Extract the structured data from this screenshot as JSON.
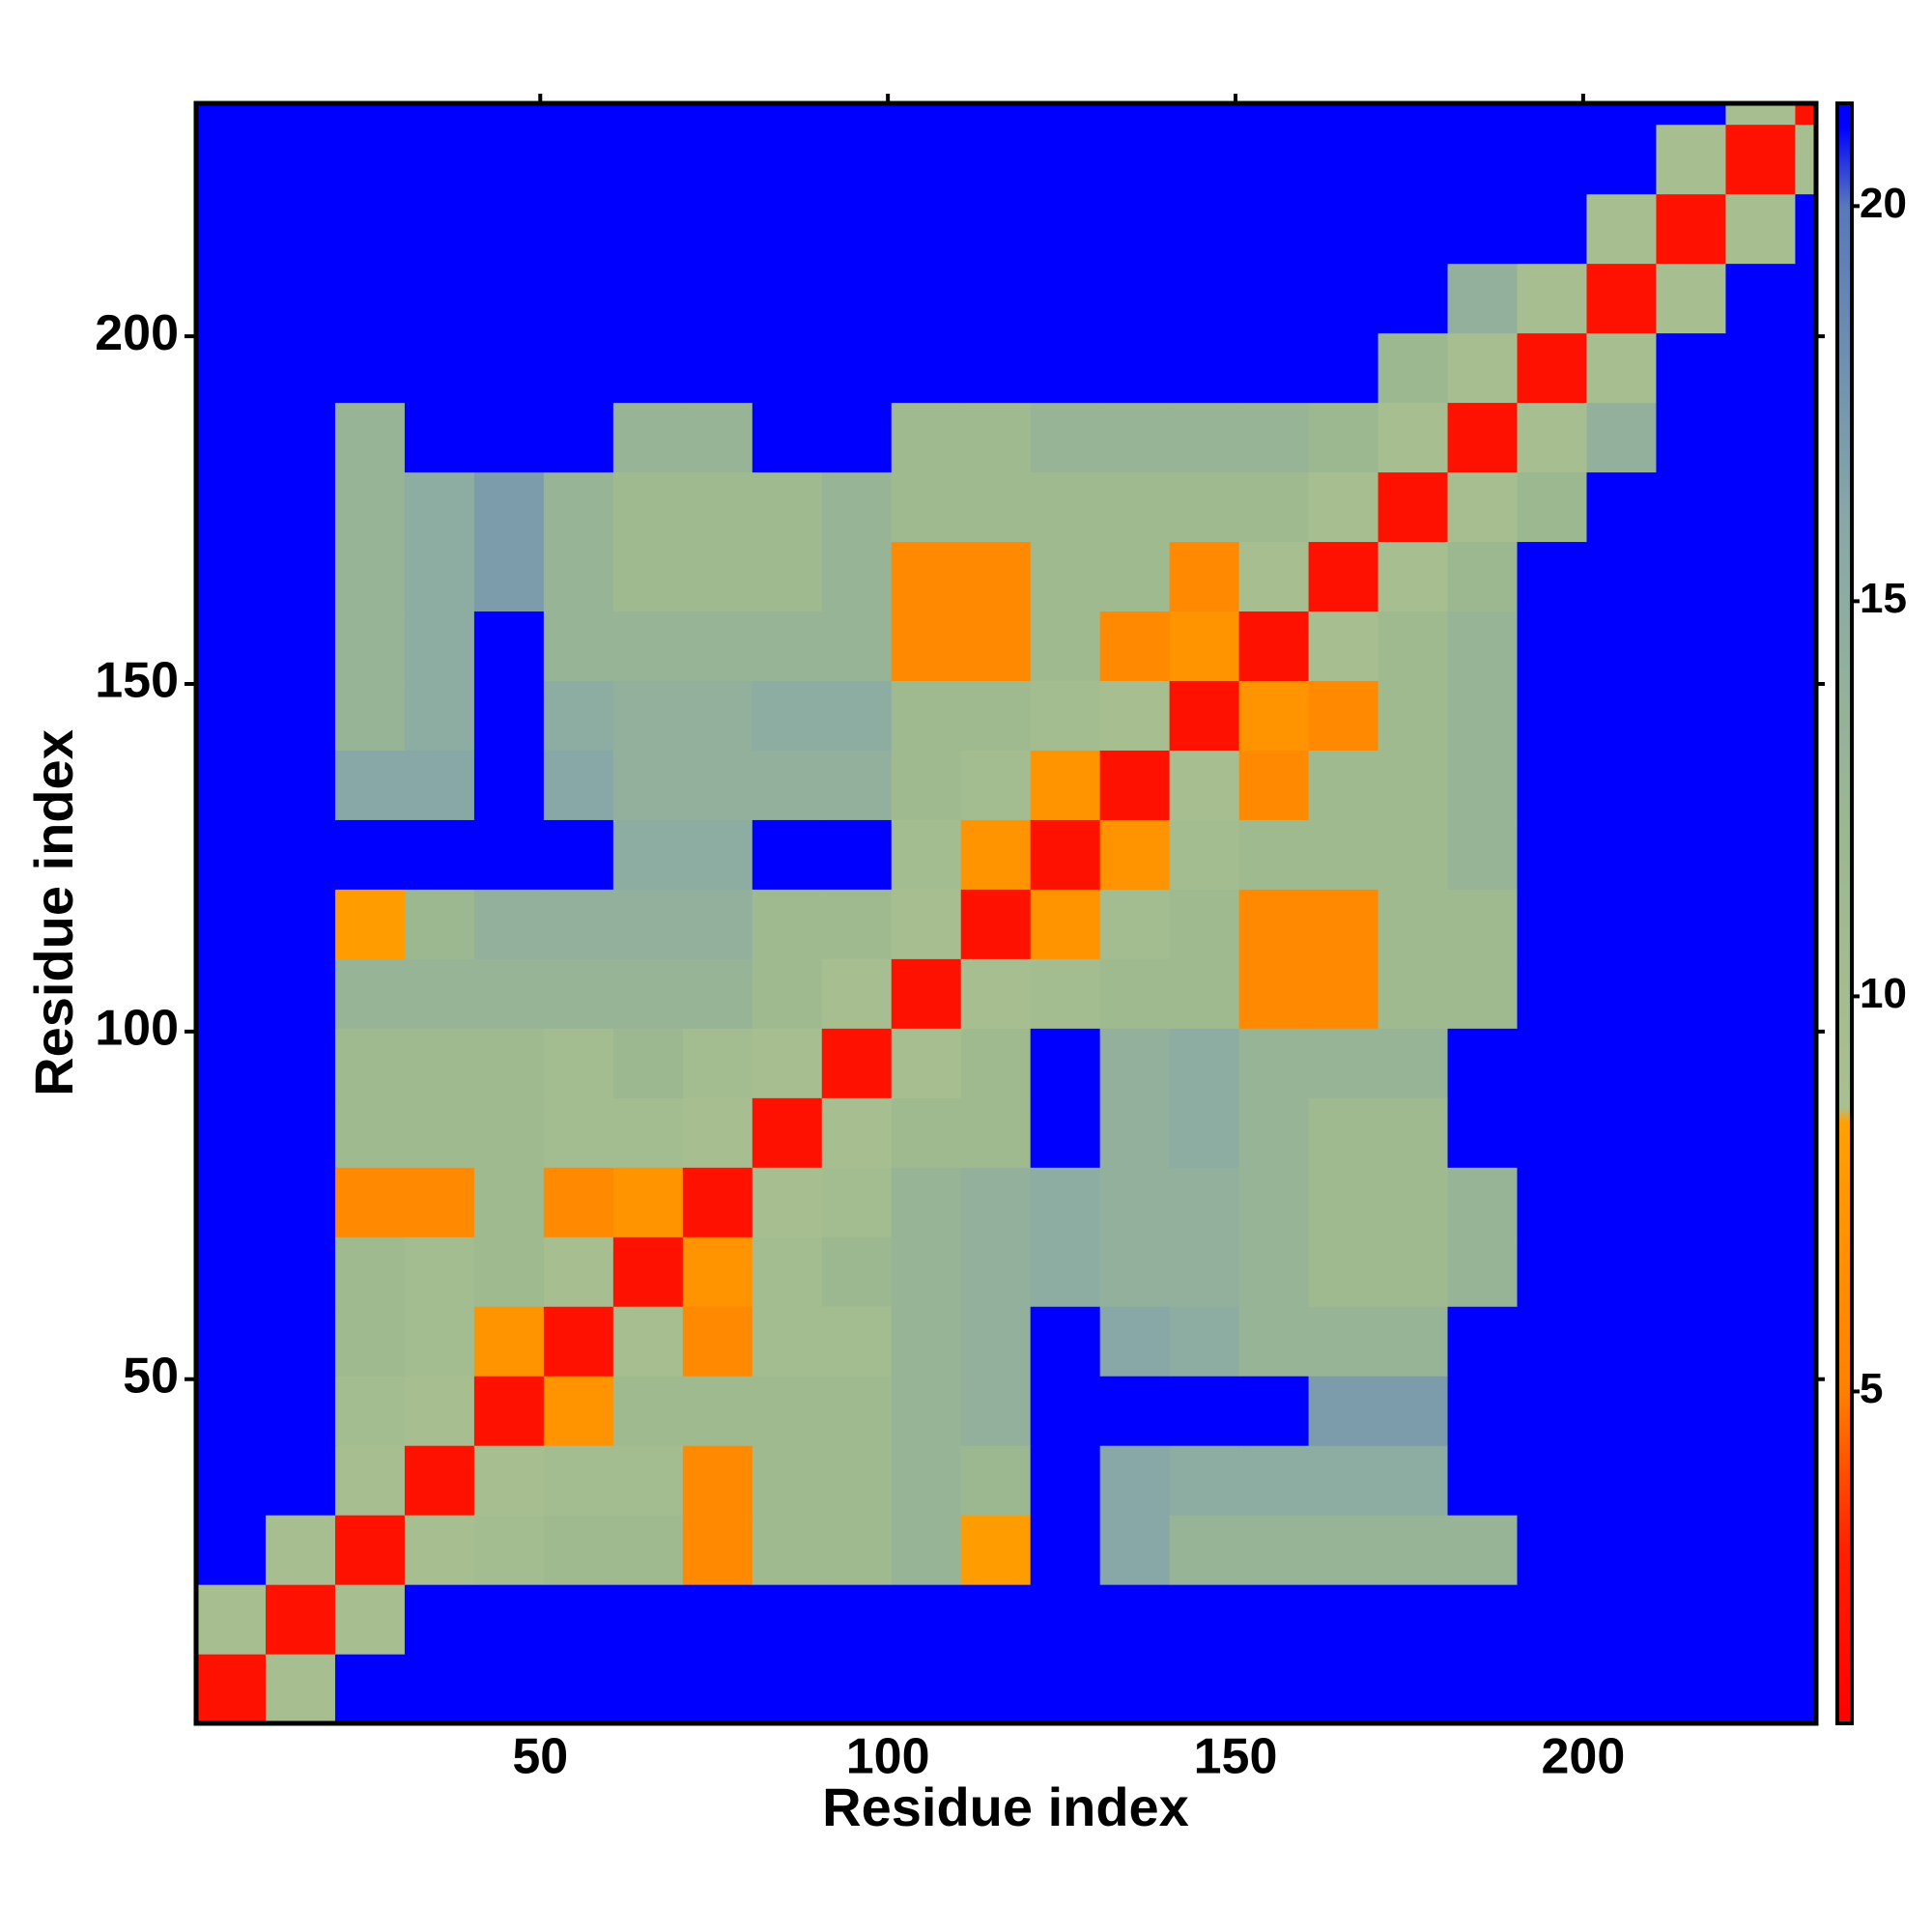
{
  "chart_data": {
    "type": "heatmap",
    "xlabel": "Residue index",
    "ylabel": "Residue index",
    "bins": [
      0.5,
      10.5,
      20.5,
      30.5,
      40.5,
      50.5,
      60.5,
      70.5,
      80.5,
      90.5,
      100.5,
      110.5,
      120.5,
      130.5,
      140.5,
      150.5,
      160.5,
      170.5,
      180.5,
      190.5,
      200.5,
      210.5,
      220.5,
      230.5,
      233.5
    ],
    "xlim": [
      0.5,
      233.5
    ],
    "ylim": [
      0.5,
      233.5
    ],
    "xticks": [
      50,
      100,
      150,
      200
    ],
    "yticks": [
      50,
      100,
      150,
      200
    ],
    "clim": [
      0.8,
      21.3
    ],
    "cticks": [
      5,
      10,
      15,
      20
    ],
    "colorscale": [
      {
        "value": 0.8,
        "color": "#ff0000"
      },
      {
        "value": 3,
        "color": "#ff2000"
      },
      {
        "value": 5,
        "color": "#ff8000"
      },
      {
        "value": 8.4,
        "color": "#ffa000"
      },
      {
        "value": 8.6,
        "color": "#a8c090"
      },
      {
        "value": 12,
        "color": "#9cb890"
      },
      {
        "value": 16,
        "color": "#88a8a8"
      },
      {
        "value": 20,
        "color": "#5878b8"
      },
      {
        "value": 21,
        "color": "#0000ff"
      },
      {
        "value": 21.3,
        "color": "#0000ff"
      }
    ],
    "values": [
      [
        2,
        9,
        21,
        21,
        21,
        21,
        21,
        21,
        21,
        21,
        21,
        21,
        21,
        21,
        21,
        21,
        21,
        21,
        21,
        21,
        21,
        21,
        21,
        21
      ],
      [
        9,
        2,
        9,
        21,
        21,
        21,
        21,
        21,
        21,
        21,
        21,
        21,
        21,
        21,
        21,
        21,
        21,
        21,
        21,
        21,
        21,
        21,
        21,
        21
      ],
      [
        21,
        9,
        2,
        9,
        10,
        11,
        11,
        6,
        11,
        11,
        13,
        8,
        21,
        16,
        13,
        13,
        13,
        13,
        13,
        21,
        21,
        21,
        21,
        21
      ],
      [
        21,
        21,
        9,
        2,
        9,
        10,
        10,
        6,
        11,
        11,
        13,
        12,
        21,
        16,
        15,
        15,
        15,
        15,
        21,
        21,
        21,
        21,
        21,
        21
      ],
      [
        21,
        21,
        10,
        9,
        2,
        7,
        11,
        11,
        11,
        11,
        13,
        14,
        21,
        21,
        21,
        21,
        17,
        17,
        21,
        21,
        21,
        21,
        21,
        21
      ],
      [
        21,
        21,
        11,
        10,
        7,
        2,
        9,
        6,
        10,
        10,
        13,
        14,
        21,
        16,
        15,
        13,
        13,
        13,
        21,
        21,
        21,
        21,
        21,
        21
      ],
      [
        21,
        21,
        11,
        10,
        11,
        9,
        2,
        7,
        10,
        12,
        13,
        14,
        15,
        14,
        14,
        13,
        11,
        11,
        13,
        21,
        21,
        21,
        21,
        21
      ],
      [
        21,
        21,
        6,
        6,
        11,
        6,
        7,
        2,
        9,
        10,
        13,
        14,
        15,
        14,
        14,
        13,
        11,
        11,
        13,
        21,
        21,
        21,
        21,
        21
      ],
      [
        21,
        21,
        11,
        11,
        11,
        10,
        10,
        9,
        2,
        9,
        11,
        11,
        21,
        14,
        15,
        13,
        11,
        11,
        21,
        21,
        21,
        21,
        21,
        21
      ],
      [
        21,
        21,
        11,
        11,
        11,
        10,
        12,
        10,
        9,
        2,
        9,
        11,
        21,
        14,
        15,
        13,
        13,
        13,
        21,
        21,
        21,
        21,
        21,
        21
      ],
      [
        21,
        21,
        13,
        13,
        13,
        13,
        13,
        13,
        11,
        9,
        2,
        9,
        10,
        11,
        11,
        6,
        6,
        11,
        11,
        21,
        21,
        21,
        21,
        21
      ],
      [
        21,
        21,
        8,
        12,
        14,
        14,
        14,
        14,
        11,
        11,
        9,
        2,
        7,
        10,
        11,
        6,
        6,
        11,
        11,
        21,
        21,
        21,
        21,
        21
      ],
      [
        21,
        21,
        21,
        21,
        21,
        21,
        15,
        15,
        21,
        21,
        10,
        7,
        2,
        7,
        10,
        11,
        11,
        11,
        13,
        21,
        21,
        21,
        21,
        21
      ],
      [
        21,
        21,
        16,
        16,
        21,
        16,
        14,
        14,
        14,
        14,
        11,
        10,
        7,
        2,
        9,
        6,
        11,
        11,
        13,
        21,
        21,
        21,
        21,
        21
      ],
      [
        21,
        21,
        13,
        15,
        21,
        15,
        14,
        14,
        15,
        15,
        11,
        11,
        10,
        9,
        2,
        7,
        6,
        11,
        13,
        21,
        21,
        21,
        21,
        21
      ],
      [
        21,
        21,
        13,
        15,
        21,
        13,
        13,
        13,
        13,
        13,
        6,
        6,
        11,
        6,
        7,
        2,
        9,
        11,
        13,
        21,
        21,
        21,
        21,
        21
      ],
      [
        21,
        21,
        13,
        15,
        17,
        13,
        11,
        11,
        11,
        13,
        6,
        6,
        11,
        11,
        6,
        9,
        2,
        9,
        12,
        21,
        21,
        21,
        21,
        21
      ],
      [
        21,
        21,
        13,
        15,
        17,
        13,
        11,
        11,
        11,
        13,
        11,
        11,
        11,
        11,
        11,
        11,
        9,
        2,
        9,
        12,
        21,
        21,
        21,
        21
      ],
      [
        21,
        21,
        13,
        21,
        21,
        21,
        13,
        13,
        21,
        21,
        11,
        11,
        13,
        13,
        13,
        13,
        12,
        9,
        2,
        9,
        14,
        21,
        21,
        21
      ],
      [
        21,
        21,
        21,
        21,
        21,
        21,
        21,
        21,
        21,
        21,
        21,
        21,
        21,
        21,
        21,
        21,
        21,
        12,
        9,
        2,
        9,
        21,
        21,
        21
      ],
      [
        21,
        21,
        21,
        21,
        21,
        21,
        21,
        21,
        21,
        21,
        21,
        21,
        21,
        21,
        21,
        21,
        21,
        21,
        14,
        9,
        2,
        9,
        21,
        21
      ],
      [
        21,
        21,
        21,
        21,
        21,
        21,
        21,
        21,
        21,
        21,
        21,
        21,
        21,
        21,
        21,
        21,
        21,
        21,
        21,
        21,
        9,
        2,
        9,
        21
      ],
      [
        21,
        21,
        21,
        21,
        21,
        21,
        21,
        21,
        21,
        21,
        21,
        21,
        21,
        21,
        21,
        21,
        21,
        21,
        21,
        21,
        21,
        9,
        2,
        9
      ],
      [
        21,
        21,
        21,
        21,
        21,
        21,
        21,
        21,
        21,
        21,
        21,
        21,
        21,
        21,
        21,
        21,
        21,
        21,
        21,
        21,
        21,
        21,
        9,
        2
      ]
    ]
  }
}
